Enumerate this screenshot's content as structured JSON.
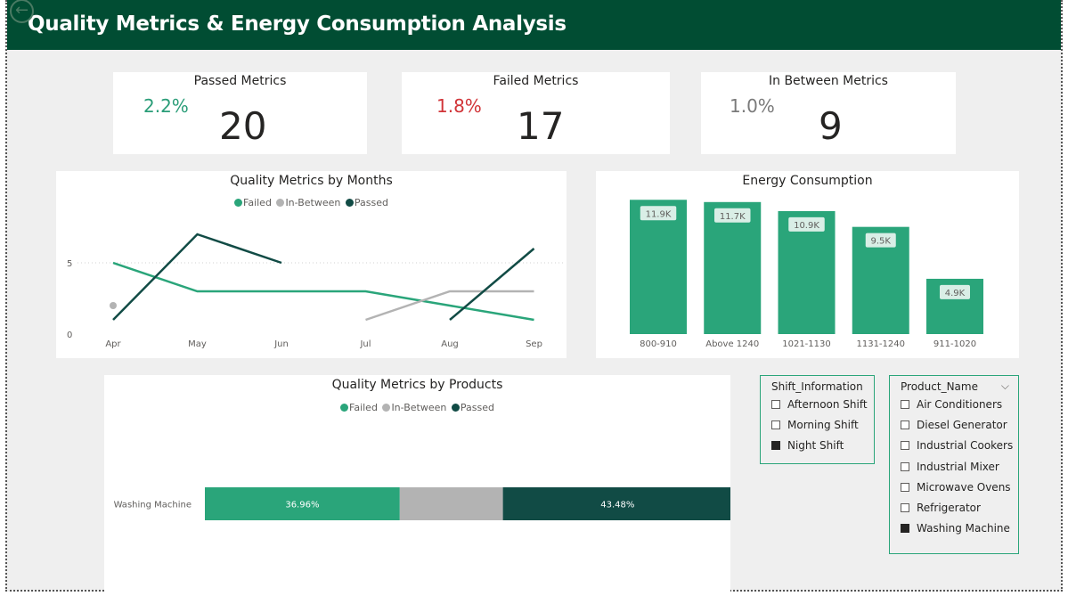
{
  "header": {
    "title": "Quality Metrics & Energy Consumption Analysis",
    "back_icon": "←"
  },
  "kpis": {
    "passed": {
      "title": "Passed Metrics",
      "pct": "2.2%",
      "value": "20",
      "color": "#2a9d78"
    },
    "failed": {
      "title": "Failed Metrics",
      "pct": "1.8%",
      "value": "17",
      "color": "#d13438"
    },
    "between": {
      "title": "In Between Metrics",
      "pct": "1.0%",
      "value": "9",
      "color": "#7a7a7a"
    }
  },
  "colors": {
    "failed": "#2aa57a",
    "in_between": "#b3b3b3",
    "passed": "#114b45",
    "header": "#014d33"
  },
  "months_chart": {
    "title": "Quality Metrics by Months",
    "legend": [
      "Failed",
      "In-Between",
      "Passed"
    ],
    "y_ticks": [
      "0",
      "5"
    ]
  },
  "energy_chart": {
    "title": "Energy Consumption"
  },
  "products_chart": {
    "title": "Quality Metrics by Products",
    "legend": [
      "Failed",
      "In-Between",
      "Passed"
    ]
  },
  "chart_data": [
    {
      "type": "line",
      "title": "Quality Metrics by Months",
      "categories": [
        "Apr",
        "May",
        "Jun",
        "Jul",
        "Aug",
        "Sep"
      ],
      "ylim": [
        0,
        7
      ],
      "y_ticks": [
        0,
        5
      ],
      "grid": true,
      "legend_position": "top-center",
      "series": [
        {
          "name": "Failed",
          "values": [
            5,
            3,
            3,
            3,
            2,
            1
          ]
        },
        {
          "name": "In-Between",
          "values": [
            2,
            null,
            null,
            1,
            3,
            3
          ]
        },
        {
          "name": "Passed",
          "values": [
            1,
            7,
            5,
            null,
            1,
            6
          ]
        }
      ]
    },
    {
      "type": "bar",
      "title": "Energy Consumption",
      "categories": [
        "800-910",
        "Above 1240",
        "1021-1130",
        "1131-1240",
        "911-1020"
      ],
      "values": [
        11.9,
        11.7,
        10.9,
        9.5,
        4.9
      ],
      "labels": [
        "11.9K",
        "11.7K",
        "10.9K",
        "9.5K",
        "4.9K"
      ],
      "ylim": [
        0,
        12
      ]
    },
    {
      "type": "bar",
      "orientation": "horizontal-stacked-100",
      "title": "Quality Metrics by Products",
      "categories": [
        "Washing Machine"
      ],
      "series": [
        {
          "name": "Failed",
          "values": [
            36.96
          ],
          "label": "36.96%"
        },
        {
          "name": "In-Between",
          "values": [
            19.56
          ],
          "label": ""
        },
        {
          "name": "Passed",
          "values": [
            43.48
          ],
          "label": "43.48%"
        }
      ]
    }
  ],
  "shift_slicer": {
    "title": "Shift_Information",
    "items": [
      {
        "label": "Afternoon Shift",
        "checked": false
      },
      {
        "label": "Morning Shift",
        "checked": false
      },
      {
        "label": "Night Shift",
        "checked": true
      }
    ]
  },
  "product_slicer": {
    "title": "Product_Name",
    "chevron": "⌵",
    "items": [
      {
        "label": "Air Conditioners",
        "checked": false
      },
      {
        "label": "Diesel Generator",
        "checked": false
      },
      {
        "label": "Industrial Cookers",
        "checked": false
      },
      {
        "label": "Industrial Mixer",
        "checked": false
      },
      {
        "label": "Microwave Ovens",
        "checked": false
      },
      {
        "label": "Refrigerator",
        "checked": false
      },
      {
        "label": "Washing Machine",
        "checked": true
      }
    ]
  }
}
